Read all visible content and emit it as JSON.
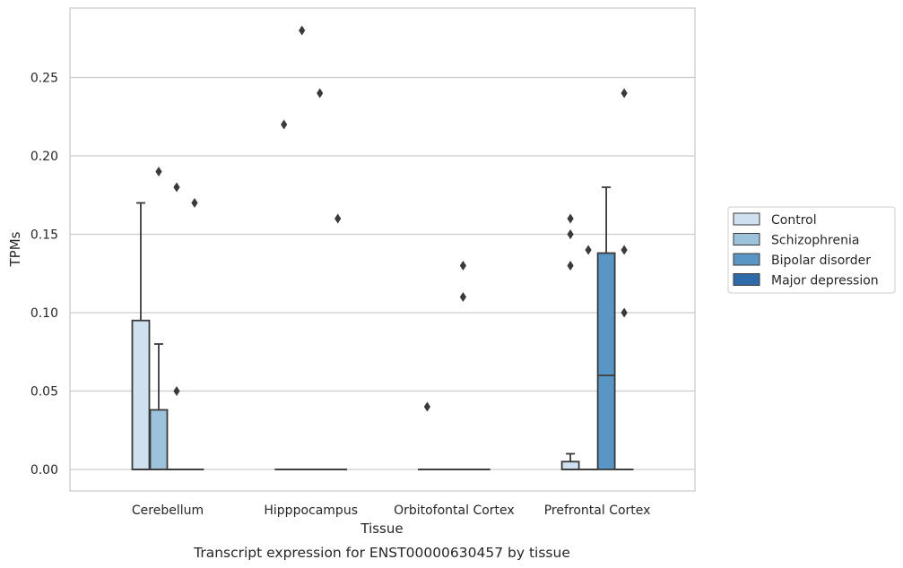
{
  "chart_data": {
    "type": "box",
    "xlabel": "Tissue",
    "ylabel": "TPMs",
    "caption": "Transcript expression for ENST00000630457 by tissue",
    "ylim": [
      -0.014,
      0.294
    ],
    "yticks": [
      0.0,
      0.05,
      0.1,
      0.15,
      0.2,
      0.25
    ],
    "ytick_labels": [
      "0.00",
      "0.05",
      "0.10",
      "0.15",
      "0.20",
      "0.25"
    ],
    "grid": "horizontal",
    "legend_position": "right",
    "categories": [
      "Cerebellum",
      "Hipppocampus",
      "Orbitofontal Cortex",
      "Prefrontal Cortex"
    ],
    "series": [
      {
        "name": "Control",
        "color": "#cfe0f0",
        "boxes": [
          {
            "q1": 0.0,
            "median": 0.0,
            "q3": 0.095,
            "whisker_low": 0.0,
            "whisker_high": 0.17,
            "outliers": []
          },
          {
            "q1": 0.0,
            "median": 0.0,
            "q3": 0.0,
            "whisker_low": 0.0,
            "whisker_high": 0.0,
            "outliers": [
              0.22
            ]
          },
          {
            "q1": 0.0,
            "median": 0.0,
            "q3": 0.0,
            "whisker_low": 0.0,
            "whisker_high": 0.0,
            "outliers": [
              0.04
            ]
          },
          {
            "q1": 0.0,
            "median": 0.0,
            "q3": 0.005,
            "whisker_low": 0.0,
            "whisker_high": 0.01,
            "outliers": [
              0.13,
              0.15,
              0.16
            ]
          }
        ]
      },
      {
        "name": "Schizophrenia",
        "color": "#9cc2dc",
        "boxes": [
          {
            "q1": 0.0,
            "median": 0.0,
            "q3": 0.038,
            "whisker_low": 0.0,
            "whisker_high": 0.08,
            "outliers": [
              0.19
            ]
          },
          {
            "q1": 0.0,
            "median": 0.0,
            "q3": 0.0,
            "whisker_low": 0.0,
            "whisker_high": 0.0,
            "outliers": [
              0.28
            ]
          },
          {
            "q1": 0.0,
            "median": 0.0,
            "q3": 0.0,
            "whisker_low": 0.0,
            "whisker_high": 0.0,
            "outliers": []
          },
          {
            "q1": 0.0,
            "median": 0.0,
            "q3": 0.0,
            "whisker_low": 0.0,
            "whisker_high": 0.0,
            "outliers": [
              0.14
            ]
          }
        ]
      },
      {
        "name": "Bipolar disorder",
        "color": "#5a96c5",
        "boxes": [
          {
            "q1": 0.0,
            "median": 0.0,
            "q3": 0.0,
            "whisker_low": 0.0,
            "whisker_high": 0.0,
            "outliers": [
              0.05,
              0.18
            ]
          },
          {
            "q1": 0.0,
            "median": 0.0,
            "q3": 0.0,
            "whisker_low": 0.0,
            "whisker_high": 0.0,
            "outliers": [
              0.24
            ]
          },
          {
            "q1": 0.0,
            "median": 0.0,
            "q3": 0.0,
            "whisker_low": 0.0,
            "whisker_high": 0.0,
            "outliers": [
              0.11,
              0.13
            ]
          },
          {
            "q1": 0.0,
            "median": 0.06,
            "q3": 0.138,
            "whisker_low": 0.0,
            "whisker_high": 0.18,
            "outliers": []
          }
        ]
      },
      {
        "name": "Major depression",
        "color": "#2f6ba8",
        "boxes": [
          {
            "q1": 0.0,
            "median": 0.0,
            "q3": 0.0,
            "whisker_low": 0.0,
            "whisker_high": 0.0,
            "outliers": [
              0.17
            ]
          },
          {
            "q1": 0.0,
            "median": 0.0,
            "q3": 0.0,
            "whisker_low": 0.0,
            "whisker_high": 0.0,
            "outliers": [
              0.16
            ]
          },
          {
            "q1": 0.0,
            "median": 0.0,
            "q3": 0.0,
            "whisker_low": 0.0,
            "whisker_high": 0.0,
            "outliers": []
          },
          {
            "q1": 0.0,
            "median": 0.0,
            "q3": 0.0,
            "whisker_low": 0.0,
            "whisker_high": 0.0,
            "outliers": [
              0.1,
              0.14,
              0.24
            ]
          }
        ]
      }
    ]
  }
}
